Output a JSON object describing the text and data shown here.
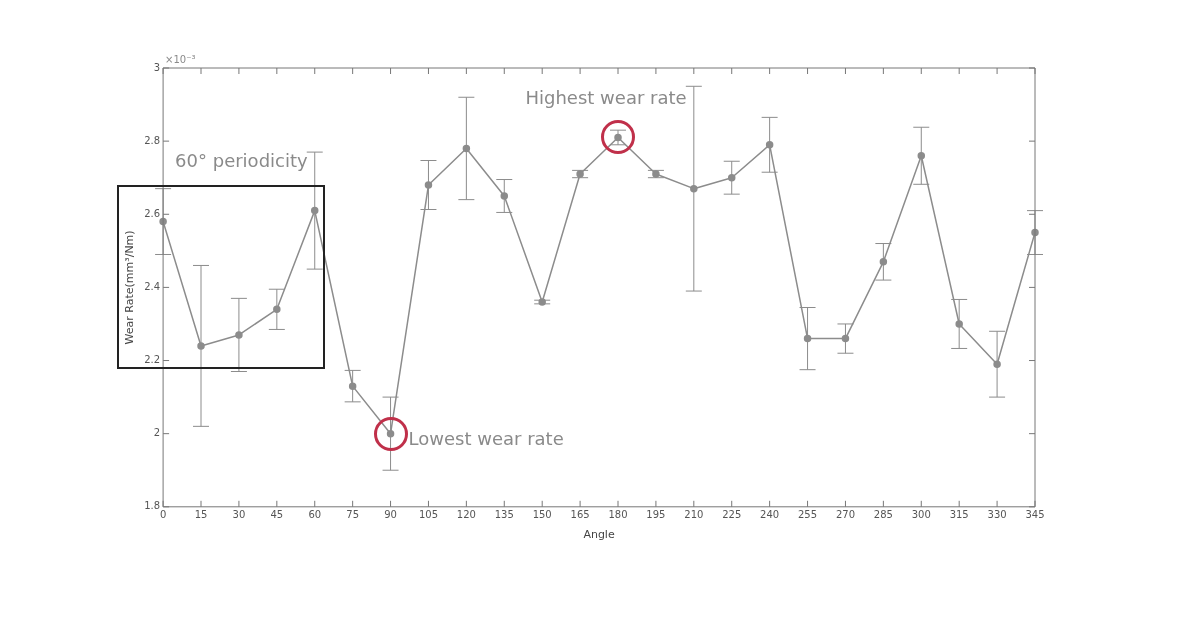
{
  "chart_data": {
    "type": "line",
    "xlabel": "Angle",
    "ylabel": "Wear Rate(mm³/Nm)",
    "x": [
      0,
      15,
      30,
      45,
      60,
      75,
      90,
      105,
      120,
      135,
      150,
      165,
      180,
      195,
      210,
      225,
      240,
      255,
      270,
      285,
      300,
      315,
      330,
      345
    ],
    "series": [
      {
        "color": "#8c8c8c",
        "values": [
          2.58,
          2.24,
          2.27,
          2.34,
          2.61,
          2.13,
          2.0,
          2.68,
          2.78,
          2.65,
          2.36,
          2.71,
          2.81,
          2.71,
          2.67,
          2.7,
          2.79,
          2.26,
          2.26,
          2.47,
          2.76,
          2.3,
          2.19,
          2.55
        ],
        "errors": [
          0.09,
          0.22,
          0.1,
          0.055,
          0.16,
          0.043,
          0.1,
          0.067,
          0.14,
          0.045,
          0.005,
          0.01,
          0.02,
          0.01,
          0.28,
          0.045,
          0.075,
          0.085,
          0.04,
          0.05,
          0.078,
          0.067,
          0.09,
          0.06
        ]
      }
    ],
    "xlim": [
      0,
      345
    ],
    "xticks": [
      0,
      15,
      30,
      45,
      60,
      75,
      90,
      105,
      120,
      135,
      150,
      165,
      180,
      195,
      210,
      225,
      240,
      255,
      270,
      285,
      300,
      315,
      330,
      345
    ],
    "ylim": [
      1.8,
      3
    ],
    "yticks": [
      1.8,
      2,
      2.2,
      2.4,
      2.6,
      2.8,
      3
    ],
    "marker": "circle",
    "line_style": "solid",
    "grid": false,
    "legend": false,
    "annotations": [
      "×10⁻³",
      "60° periodicity",
      {
        "text": "Highest wear rate",
        "x": 180,
        "y": 2.81
      },
      {
        "text": "Lowest wear rate",
        "x": 90,
        "y": 2.0
      }
    ]
  }
}
